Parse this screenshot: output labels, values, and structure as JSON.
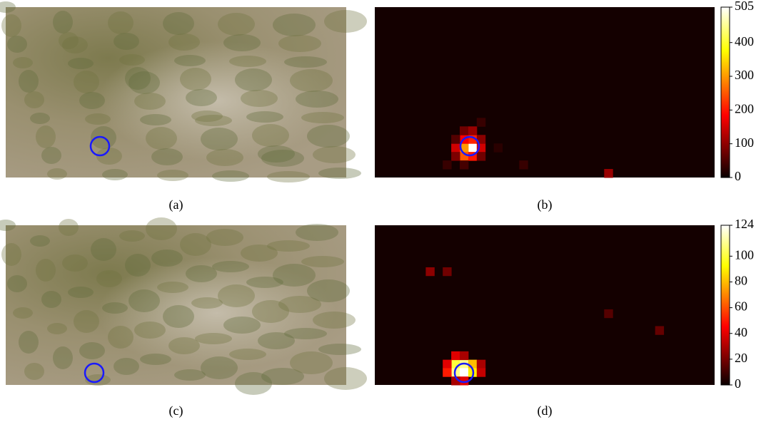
{
  "figure": {
    "panels": [
      {
        "type": "image",
        "caption": "(a)"
      },
      {
        "type": "heatmap",
        "caption": "(b)",
        "shape": [
          20,
          40
        ],
        "zlim": [
          0,
          505
        ],
        "zticks": [
          0,
          100,
          200,
          300,
          400,
          505
        ],
        "cells": [
          [
            16,
            11,
            505
          ],
          [
            16,
            10,
            300
          ],
          [
            15,
            11,
            210
          ],
          [
            15,
            10,
            180
          ],
          [
            16,
            12,
            150
          ],
          [
            17,
            10,
            250
          ],
          [
            17,
            11,
            200
          ],
          [
            16,
            9,
            150
          ],
          [
            15,
            12,
            100
          ],
          [
            14,
            10,
            80
          ],
          [
            14,
            11,
            110
          ],
          [
            17,
            12,
            80
          ],
          [
            17,
            9,
            90
          ],
          [
            15,
            9,
            60
          ],
          [
            13,
            12,
            40
          ],
          [
            18,
            10,
            50
          ],
          [
            18,
            8,
            40
          ],
          [
            19,
            27,
            110
          ],
          [
            18,
            17,
            40
          ],
          [
            16,
            14,
            30
          ]
        ]
      },
      {
        "type": "image",
        "caption": "(c)"
      },
      {
        "type": "heatmap",
        "caption": "(d)",
        "shape": [
          19,
          40
        ],
        "zlim": [
          0,
          124
        ],
        "zticks": [
          0,
          20,
          40,
          60,
          80,
          100,
          124
        ],
        "cells": [
          [
            16,
            9,
            100
          ],
          [
            16,
            10,
            110
          ],
          [
            16,
            11,
            80
          ],
          [
            17,
            9,
            110
          ],
          [
            17,
            10,
            124
          ],
          [
            17,
            11,
            90
          ],
          [
            16,
            8,
            40
          ],
          [
            17,
            8,
            50
          ],
          [
            16,
            12,
            30
          ],
          [
            17,
            12,
            35
          ],
          [
            15,
            9,
            40
          ],
          [
            15,
            10,
            30
          ],
          [
            18,
            10,
            40
          ],
          [
            18,
            9,
            30
          ],
          [
            5,
            6,
            25
          ],
          [
            5,
            8,
            20
          ],
          [
            10,
            27,
            15
          ],
          [
            12,
            33,
            18
          ]
        ]
      }
    ]
  }
}
